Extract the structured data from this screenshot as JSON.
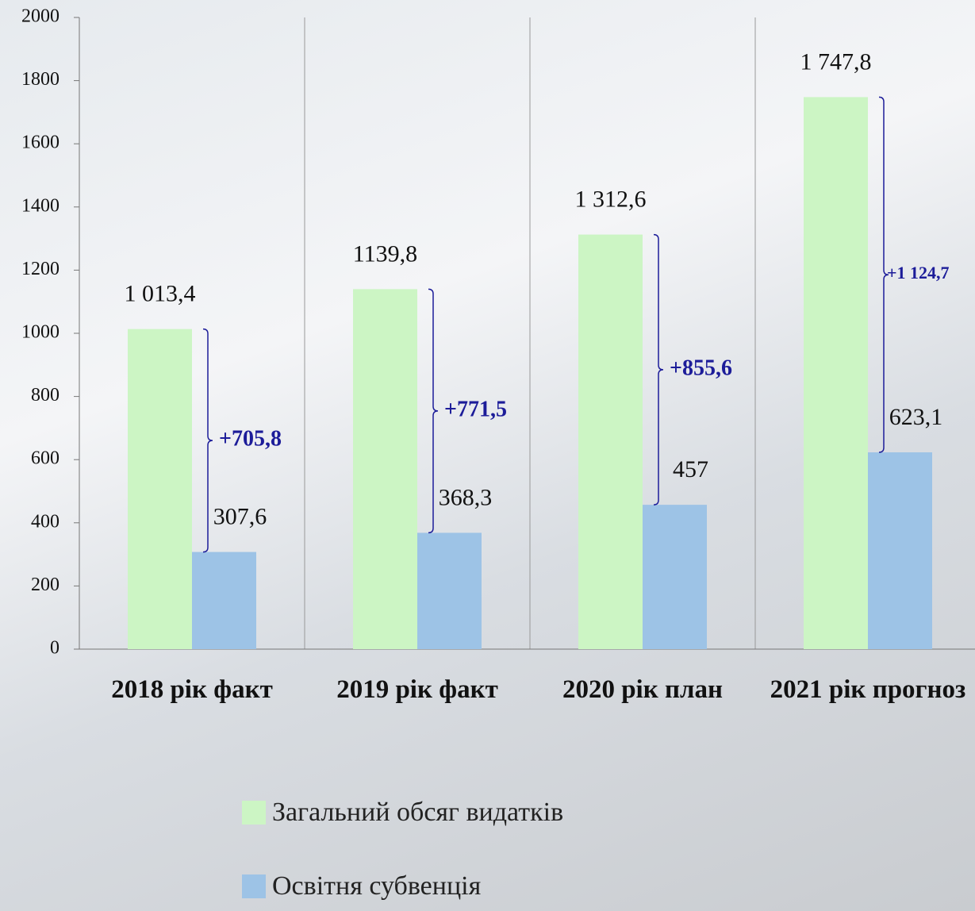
{
  "chart_data": {
    "type": "bar",
    "categories": [
      "2018 рік факт",
      "2019 рік факт",
      "2020 рік план",
      "2021 рік прогноз"
    ],
    "series": [
      {
        "name": "Загальний обсяг видатків",
        "color": "#ccf5c4",
        "values": [
          1013.4,
          1139.8,
          1312.6,
          1747.8
        ],
        "value_labels": [
          "1 013,4",
          "1139,8",
          "1 312,6",
          "1 747,8"
        ]
      },
      {
        "name": "Освітня субвенція",
        "color": "#9dc3e6",
        "values": [
          307.6,
          368.3,
          457,
          623.1
        ],
        "value_labels": [
          "307,6",
          "368,3",
          "457",
          "623,1"
        ]
      }
    ],
    "annotations": [
      "+705,8",
      "+771,5",
      "+855,6",
      "+1 124,7"
    ],
    "annotation_color": "#1c1c99",
    "ylim": [
      0,
      2000
    ],
    "yticks": [
      0,
      200,
      400,
      600,
      800,
      1000,
      1200,
      1400,
      1600,
      1800,
      2000
    ],
    "grid": "x",
    "legend": "bottom"
  }
}
